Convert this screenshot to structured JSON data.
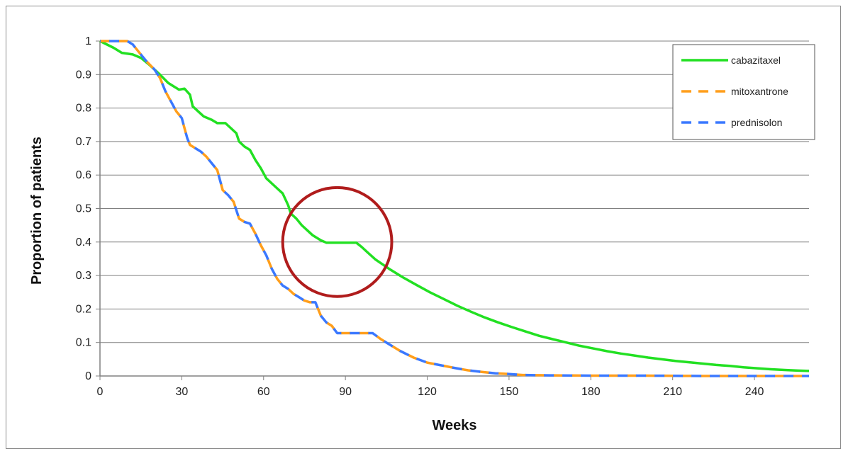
{
  "chart_data": {
    "type": "line",
    "title": "",
    "xlabel": "Weeks",
    "ylabel": "Proportion of patients",
    "xlim": [
      0,
      260
    ],
    "ylim": [
      0,
      1
    ],
    "x_ticks": [
      0,
      30,
      60,
      90,
      120,
      150,
      180,
      210,
      240
    ],
    "y_ticks": [
      0,
      0.1,
      0.2,
      0.3,
      0.4,
      0.5,
      0.6,
      0.7,
      0.8,
      0.9,
      1
    ],
    "y_tick_labels": [
      "0",
      "0.1",
      "0.2",
      "0.3",
      "0.4",
      "0.5",
      "0.6",
      "0.7",
      "0.8",
      "0.9",
      "1"
    ],
    "grid": "horizontal",
    "legend_position": "top-right",
    "series": [
      {
        "name": "cabazitaxel",
        "color": "#22e022",
        "style": "solid",
        "points": [
          [
            0,
            1
          ],
          [
            5,
            0.98
          ],
          [
            8,
            0.965
          ],
          [
            12,
            0.96
          ],
          [
            15,
            0.95
          ],
          [
            18,
            0.93
          ],
          [
            22,
            0.9
          ],
          [
            25,
            0.875
          ],
          [
            27,
            0.865
          ],
          [
            29,
            0.855
          ],
          [
            31,
            0.858
          ],
          [
            33,
            0.84
          ],
          [
            34,
            0.805
          ],
          [
            36,
            0.79
          ],
          [
            38,
            0.775
          ],
          [
            41,
            0.765
          ],
          [
            43,
            0.755
          ],
          [
            46,
            0.755
          ],
          [
            48,
            0.74
          ],
          [
            50,
            0.725
          ],
          [
            51,
            0.7
          ],
          [
            53,
            0.685
          ],
          [
            55,
            0.675
          ],
          [
            57,
            0.645
          ],
          [
            59,
            0.62
          ],
          [
            61,
            0.59
          ],
          [
            63,
            0.575
          ],
          [
            65,
            0.56
          ],
          [
            67,
            0.545
          ],
          [
            69,
            0.51
          ],
          [
            70,
            0.485
          ],
          [
            72,
            0.47
          ],
          [
            74,
            0.45
          ],
          [
            76,
            0.435
          ],
          [
            78,
            0.42
          ],
          [
            81,
            0.405
          ],
          [
            83,
            0.398
          ],
          [
            94,
            0.398
          ],
          [
            96,
            0.385
          ],
          [
            98,
            0.37
          ],
          [
            101,
            0.348
          ],
          [
            106,
            0.32
          ],
          [
            111,
            0.295
          ],
          [
            116,
            0.272
          ],
          [
            121,
            0.25
          ],
          [
            126,
            0.23
          ],
          [
            131,
            0.21
          ],
          [
            136,
            0.192
          ],
          [
            141,
            0.175
          ],
          [
            146,
            0.16
          ],
          [
            151,
            0.146
          ],
          [
            156,
            0.133
          ],
          [
            161,
            0.12
          ],
          [
            166,
            0.11
          ],
          [
            171,
            0.1
          ],
          [
            176,
            0.09
          ],
          [
            181,
            0.082
          ],
          [
            186,
            0.074
          ],
          [
            191,
            0.067
          ],
          [
            196,
            0.061
          ],
          [
            201,
            0.055
          ],
          [
            206,
            0.05
          ],
          [
            211,
            0.045
          ],
          [
            216,
            0.041
          ],
          [
            221,
            0.037
          ],
          [
            226,
            0.033
          ],
          [
            231,
            0.03
          ],
          [
            236,
            0.026
          ],
          [
            241,
            0.023
          ],
          [
            246,
            0.02
          ],
          [
            251,
            0.018
          ],
          [
            256,
            0.016
          ],
          [
            260,
            0.015
          ]
        ]
      },
      {
        "name": "mitoxantrone",
        "color": "#ff9e1b",
        "style": "dashed",
        "points": [
          [
            0,
            1
          ],
          [
            10,
            1
          ],
          [
            12,
            0.99
          ],
          [
            14,
            0.97
          ],
          [
            17,
            0.94
          ],
          [
            20,
            0.915
          ],
          [
            22,
            0.89
          ],
          [
            24,
            0.85
          ],
          [
            26,
            0.82
          ],
          [
            28,
            0.79
          ],
          [
            30,
            0.77
          ],
          [
            31,
            0.74
          ],
          [
            32,
            0.71
          ],
          [
            33,
            0.69
          ],
          [
            35,
            0.68
          ],
          [
            37,
            0.67
          ],
          [
            39,
            0.655
          ],
          [
            41,
            0.635
          ],
          [
            43,
            0.615
          ],
          [
            45,
            0.555
          ],
          [
            47,
            0.54
          ],
          [
            49,
            0.52
          ],
          [
            51,
            0.47
          ],
          [
            53,
            0.46
          ],
          [
            55,
            0.455
          ],
          [
            57,
            0.425
          ],
          [
            59,
            0.39
          ],
          [
            61,
            0.36
          ],
          [
            63,
            0.32
          ],
          [
            65,
            0.29
          ],
          [
            67,
            0.27
          ],
          [
            69,
            0.26
          ],
          [
            71,
            0.245
          ],
          [
            73,
            0.235
          ],
          [
            75,
            0.225
          ],
          [
            77,
            0.22
          ],
          [
            79,
            0.22
          ],
          [
            81,
            0.18
          ],
          [
            83,
            0.16
          ],
          [
            85,
            0.15
          ],
          [
            87,
            0.128
          ],
          [
            100,
            0.128
          ],
          [
            103,
            0.11
          ],
          [
            106,
            0.095
          ],
          [
            110,
            0.075
          ],
          [
            115,
            0.055
          ],
          [
            120,
            0.04
          ],
          [
            125,
            0.032
          ],
          [
            130,
            0.024
          ],
          [
            135,
            0.017
          ],
          [
            140,
            0.012
          ],
          [
            145,
            0.008
          ],
          [
            150,
            0.006
          ],
          [
            155,
            0.003
          ],
          [
            165,
            0.002
          ],
          [
            180,
            0.001
          ],
          [
            200,
            0.001
          ],
          [
            220,
            0.0
          ],
          [
            240,
            0.0
          ],
          [
            260,
            0.0
          ]
        ]
      },
      {
        "name": "prednisolon",
        "color": "#3a78ff",
        "style": "dashed",
        "points": [
          [
            0,
            1
          ],
          [
            10,
            1
          ],
          [
            12,
            0.99
          ],
          [
            14,
            0.97
          ],
          [
            17,
            0.94
          ],
          [
            20,
            0.915
          ],
          [
            22,
            0.89
          ],
          [
            24,
            0.85
          ],
          [
            26,
            0.82
          ],
          [
            28,
            0.79
          ],
          [
            30,
            0.77
          ],
          [
            31,
            0.74
          ],
          [
            32,
            0.71
          ],
          [
            33,
            0.69
          ],
          [
            35,
            0.68
          ],
          [
            37,
            0.67
          ],
          [
            39,
            0.655
          ],
          [
            41,
            0.635
          ],
          [
            43,
            0.615
          ],
          [
            45,
            0.555
          ],
          [
            47,
            0.54
          ],
          [
            49,
            0.52
          ],
          [
            51,
            0.47
          ],
          [
            53,
            0.46
          ],
          [
            55,
            0.455
          ],
          [
            57,
            0.425
          ],
          [
            59,
            0.39
          ],
          [
            61,
            0.36
          ],
          [
            63,
            0.32
          ],
          [
            65,
            0.29
          ],
          [
            67,
            0.27
          ],
          [
            69,
            0.26
          ],
          [
            71,
            0.245
          ],
          [
            73,
            0.235
          ],
          [
            75,
            0.225
          ],
          [
            77,
            0.22
          ],
          [
            79,
            0.22
          ],
          [
            81,
            0.18
          ],
          [
            83,
            0.16
          ],
          [
            85,
            0.15
          ],
          [
            87,
            0.128
          ],
          [
            100,
            0.128
          ],
          [
            103,
            0.11
          ],
          [
            106,
            0.095
          ],
          [
            110,
            0.075
          ],
          [
            115,
            0.055
          ],
          [
            120,
            0.04
          ],
          [
            125,
            0.032
          ],
          [
            130,
            0.024
          ],
          [
            135,
            0.017
          ],
          [
            140,
            0.012
          ],
          [
            145,
            0.008
          ],
          [
            150,
            0.006
          ],
          [
            155,
            0.003
          ],
          [
            165,
            0.002
          ],
          [
            180,
            0.001
          ],
          [
            200,
            0.001
          ],
          [
            220,
            0.0
          ],
          [
            240,
            0.0
          ],
          [
            260,
            0.0
          ]
        ]
      }
    ],
    "annotations": [
      {
        "type": "circle",
        "center": [
          87,
          0.4
        ],
        "radius_weeks": 20,
        "color": "#b01c1c"
      }
    ]
  }
}
